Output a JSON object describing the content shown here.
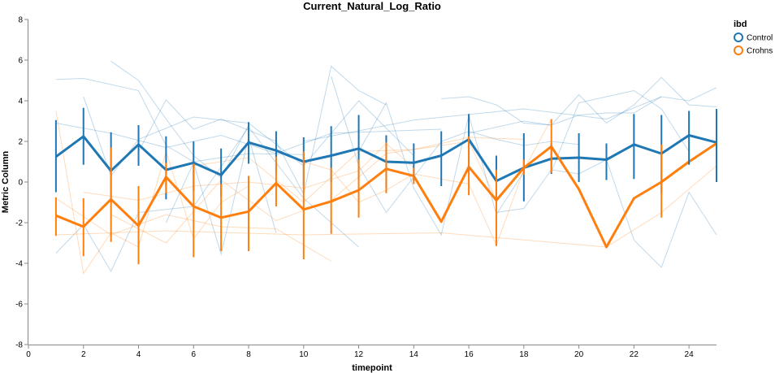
{
  "chart_data": {
    "type": "line",
    "title": "Current_Natural_Log_Ratio",
    "xlabel": "timepoint",
    "ylabel": "Metric Column",
    "xlim": [
      0,
      25
    ],
    "ylim": [
      -8,
      8
    ],
    "xticks": [
      0,
      2,
      4,
      6,
      8,
      10,
      12,
      14,
      16,
      18,
      20,
      22,
      24
    ],
    "yticks": [
      -8,
      -6,
      -4,
      -2,
      0,
      2,
      4,
      6,
      8
    ],
    "grid": false,
    "legend": {
      "title": "ibd",
      "placement": "top-right"
    },
    "series": [
      {
        "name": "Control",
        "color": "#1f77b4",
        "x": [
          1,
          2,
          3,
          4,
          5,
          6,
          7,
          8,
          9,
          10,
          11,
          12,
          13,
          14,
          15,
          16,
          17,
          18,
          19,
          20,
          21,
          22,
          23,
          24,
          25
        ],
        "mean": [
          1.25,
          2.25,
          0.55,
          1.85,
          0.6,
          0.95,
          0.35,
          1.95,
          1.55,
          1.0,
          1.3,
          1.65,
          1.0,
          0.95,
          1.3,
          2.1,
          0.05,
          0.7,
          1.15,
          1.2,
          1.1,
          1.85,
          1.4,
          2.3,
          1.95
        ],
        "low": [
          -0.5,
          0.85,
          -0.9,
          0.8,
          -0.85,
          -0.45,
          -0.7,
          0.9,
          0.5,
          -0.2,
          0.0,
          0.1,
          -0.3,
          0.05,
          -0.2,
          0.5,
          -1.0,
          -0.95,
          0.4,
          0.0,
          0.1,
          0.15,
          -0.55,
          0.85,
          0.0
        ],
        "high": [
          3.05,
          3.65,
          2.45,
          2.8,
          2.25,
          2.0,
          1.65,
          2.95,
          2.5,
          2.2,
          2.75,
          3.3,
          2.3,
          1.9,
          2.5,
          3.35,
          1.3,
          2.4,
          1.9,
          2.4,
          1.9,
          3.35,
          3.3,
          3.5,
          3.6
        ]
      },
      {
        "name": "Crohns",
        "color": "#ff7f0e",
        "x": [
          1,
          2,
          3,
          4,
          5,
          6,
          7,
          8,
          9,
          10,
          11,
          12,
          13,
          14,
          15,
          16,
          17,
          18,
          19,
          20,
          21,
          22,
          23,
          24,
          25
        ],
        "mean": [
          -1.65,
          -2.2,
          -0.85,
          -2.15,
          0.25,
          -1.2,
          -1.75,
          -1.45,
          -0.05,
          -1.35,
          -0.95,
          -0.4,
          0.65,
          0.3,
          -1.95,
          0.75,
          -0.9,
          0.7,
          1.75,
          -0.35,
          -3.2,
          -0.8,
          0.0,
          1.0,
          1.9
        ],
        "low": [
          -2.65,
          -3.65,
          -2.95,
          -4.05,
          -0.55,
          -3.7,
          -3.4,
          -3.4,
          -1.2,
          -3.8,
          -2.55,
          -1.75,
          -0.55,
          -0.1,
          -1.95,
          -0.65,
          -3.15,
          0.35,
          0.45,
          -0.35,
          -3.2,
          -0.8,
          -1.75,
          1.0,
          1.9
        ],
        "high": [
          -0.75,
          -0.8,
          1.7,
          -0.2,
          0.95,
          0.9,
          -0.1,
          0.3,
          1.25,
          1.5,
          0.7,
          1.1,
          1.95,
          0.7,
          -1.95,
          2.25,
          0.6,
          1.1,
          3.1,
          -0.35,
          -3.2,
          -0.8,
          1.85,
          1.0,
          1.9
        ]
      }
    ],
    "background_series": [
      {
        "group": "Control",
        "x": [
          1,
          2,
          4,
          5,
          6,
          8,
          10
        ],
        "y": [
          5.05,
          5.1,
          4.5,
          1.8,
          1.0,
          1.4,
          1.35
        ]
      },
      {
        "group": "Control",
        "x": [
          1,
          3,
          5,
          7,
          9,
          11,
          13,
          15
        ],
        "y": [
          2.9,
          2.4,
          1.7,
          2.3,
          1.4,
          2.4,
          2.5,
          2.6
        ]
      },
      {
        "group": "Control",
        "x": [
          2,
          3,
          4,
          6,
          8,
          10,
          12,
          14
        ],
        "y": [
          4.2,
          0.3,
          2.1,
          3.2,
          2.9,
          0.8,
          4.0,
          1.3
        ]
      },
      {
        "group": "Control",
        "x": [
          3,
          4,
          5,
          6,
          7,
          8
        ],
        "y": [
          5.95,
          5.0,
          3.1,
          1.3,
          0.2,
          2.8
        ]
      },
      {
        "group": "Control",
        "x": [
          1,
          2,
          3,
          4,
          6,
          8,
          10,
          12
        ],
        "y": [
          -3.5,
          -2.1,
          -4.4,
          -1.5,
          -1.2,
          2.7,
          -0.8,
          -3.2
        ]
      },
      {
        "group": "Control",
        "x": [
          4,
          5,
          6,
          7,
          9,
          10,
          11,
          12,
          13
        ],
        "y": [
          1.5,
          4.05,
          2.6,
          3.1,
          2.0,
          -0.6,
          5.7,
          4.5,
          3.8
        ]
      },
      {
        "group": "Control",
        "x": [
          11,
          12,
          13,
          15,
          16,
          17,
          18,
          19,
          20
        ],
        "y": [
          5.2,
          0.8,
          -1.5,
          2.0,
          2.5,
          2.1,
          1.8,
          2.0,
          1.85
        ]
      },
      {
        "group": "Control",
        "x": [
          12,
          13,
          14,
          15,
          16,
          17,
          18
        ],
        "y": [
          1.5,
          3.9,
          -0.3,
          -2.6,
          3.3,
          -1.6,
          0.5
        ]
      },
      {
        "group": "Control",
        "x": [
          15,
          16,
          17,
          18,
          19,
          20,
          21,
          22,
          23,
          24,
          25
        ],
        "y": [
          4.1,
          4.2,
          3.8,
          2.9,
          2.8,
          4.3,
          2.9,
          3.8,
          5.15,
          3.8,
          3.7
        ]
      },
      {
        "group": "Control",
        "x": [
          16,
          18,
          19,
          20,
          21,
          22,
          23,
          24,
          25
        ],
        "y": [
          2.4,
          3.0,
          2.8,
          3.3,
          3.4,
          3.4,
          4.2,
          4.0,
          4.65
        ]
      },
      {
        "group": "Control",
        "x": [
          17,
          18,
          19,
          20,
          21,
          22,
          23,
          24,
          25
        ],
        "y": [
          -1.5,
          -1.3,
          0.6,
          0.4,
          1.1,
          -2.85,
          -4.2,
          -0.5,
          -2.6
        ]
      },
      {
        "group": "Control",
        "x": [
          19,
          20,
          22,
          23,
          24
        ],
        "y": [
          0.5,
          3.9,
          4.5,
          3.6,
          1.5
        ]
      },
      {
        "group": "Control",
        "x": [
          10,
          14,
          18,
          21,
          23
        ],
        "y": [
          2.0,
          3.05,
          3.6,
          3.1,
          4.2
        ]
      },
      {
        "group": "Control",
        "x": [
          5,
          6,
          7,
          8,
          9
        ],
        "y": [
          -2.0,
          0.95,
          -3.55,
          2.2,
          -2.5
        ]
      },
      {
        "group": "Crohns",
        "x": [
          1,
          2,
          3,
          4,
          5,
          6,
          7,
          8
        ],
        "y": [
          3.5,
          -4.5,
          -2.5,
          -3.2,
          1.5,
          -2.8,
          -1.0,
          -0.2
        ]
      },
      {
        "group": "Crohns",
        "x": [
          1,
          3,
          5,
          7,
          9,
          11
        ],
        "y": [
          -0.8,
          -2.6,
          -1.6,
          -2.2,
          -2.3,
          -3.9
        ]
      },
      {
        "group": "Crohns",
        "x": [
          2,
          4,
          6,
          8,
          10,
          12,
          13,
          14
        ],
        "y": [
          -0.5,
          -0.9,
          -0.2,
          0.0,
          -0.3,
          0.55,
          1.9,
          0.7
        ]
      },
      {
        "group": "Crohns",
        "x": [
          3,
          5,
          7,
          9,
          11,
          13,
          16,
          17
        ],
        "y": [
          -1.6,
          -3.0,
          0.1,
          -1.9,
          -0.9,
          1.4,
          2.0,
          -0.9
        ]
      },
      {
        "group": "Crohns",
        "x": [
          10,
          11,
          12,
          13,
          14,
          16,
          17,
          18,
          19
        ],
        "y": [
          1.0,
          0.6,
          -1.0,
          -0.4,
          0.4,
          -0.1,
          -3.1,
          0.6,
          3.1
        ]
      },
      {
        "group": "Crohns",
        "x": [
          6,
          8,
          10,
          12,
          14,
          16,
          18
        ],
        "y": [
          0.8,
          1.2,
          -1.0,
          1.5,
          1.6,
          2.2,
          2.1
        ]
      },
      {
        "group": "Crohns",
        "x": [
          1,
          5,
          10,
          15,
          21,
          23,
          25
        ],
        "y": [
          -2.6,
          -2.4,
          -2.6,
          -2.5,
          -3.2,
          -1.5,
          0.8
        ]
      }
    ]
  }
}
